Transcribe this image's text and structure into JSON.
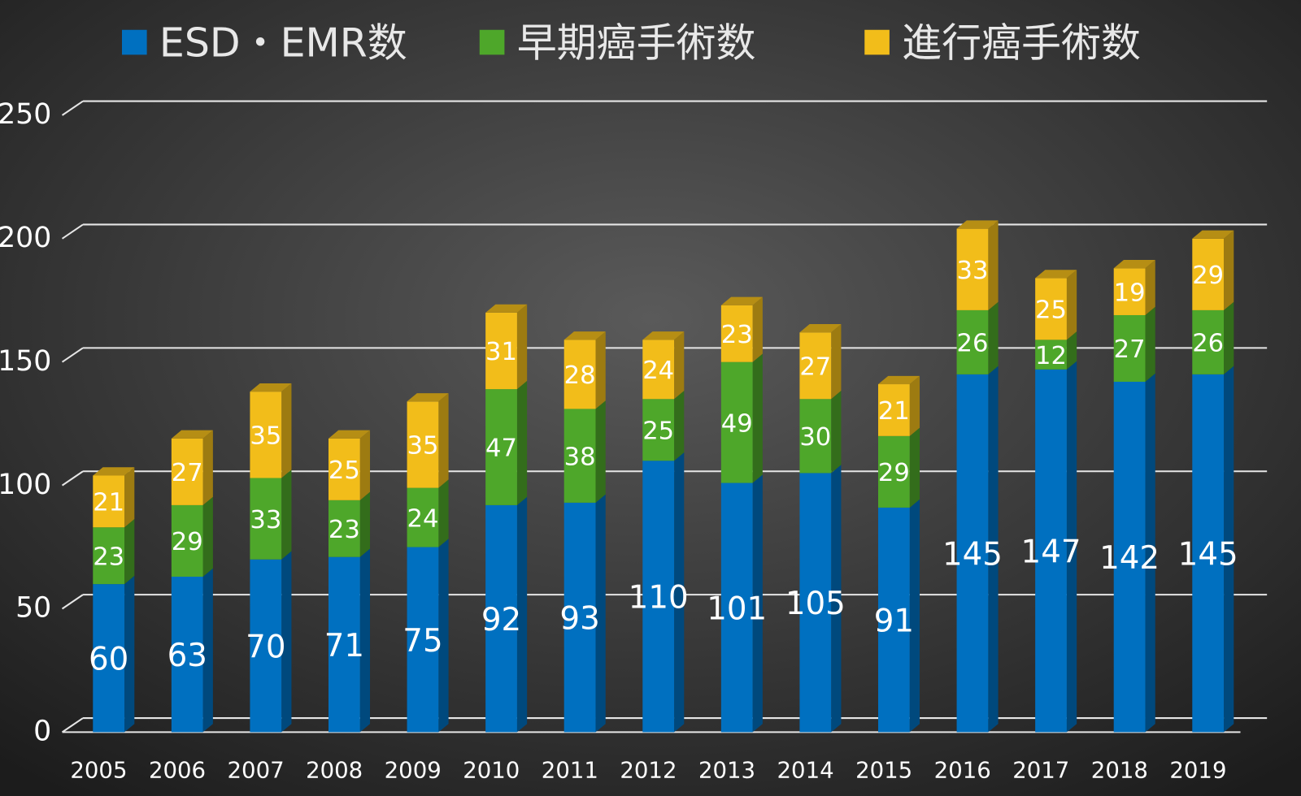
{
  "chart_data": {
    "type": "bar",
    "stacked": true,
    "style": "3d",
    "title": "",
    "xlabel": "",
    "ylabel": "",
    "ylim": [
      0,
      250
    ],
    "yticks": [
      0,
      50,
      100,
      150,
      200,
      250
    ],
    "grid": true,
    "legend_position": "top",
    "categories": [
      "2005",
      "2006",
      "2007",
      "2008",
      "2009",
      "2010",
      "2011",
      "2012",
      "2013",
      "2014",
      "2015",
      "2016",
      "2017",
      "2018",
      "2019"
    ],
    "series": [
      {
        "name": "ESD・EMR数",
        "color": "#0070c0",
        "values": [
          60,
          63,
          70,
          71,
          75,
          92,
          93,
          110,
          101,
          105,
          91,
          145,
          147,
          142,
          145
        ]
      },
      {
        "name": "早期癌手術数",
        "color": "#4ea72a",
        "values": [
          23,
          29,
          33,
          23,
          24,
          47,
          38,
          25,
          49,
          30,
          29,
          26,
          12,
          27,
          26
        ]
      },
      {
        "name": "進行癌手術数",
        "color": "#f2bd1a",
        "values": [
          21,
          27,
          35,
          25,
          35,
          31,
          28,
          24,
          23,
          27,
          21,
          33,
          25,
          19,
          29
        ]
      }
    ]
  }
}
